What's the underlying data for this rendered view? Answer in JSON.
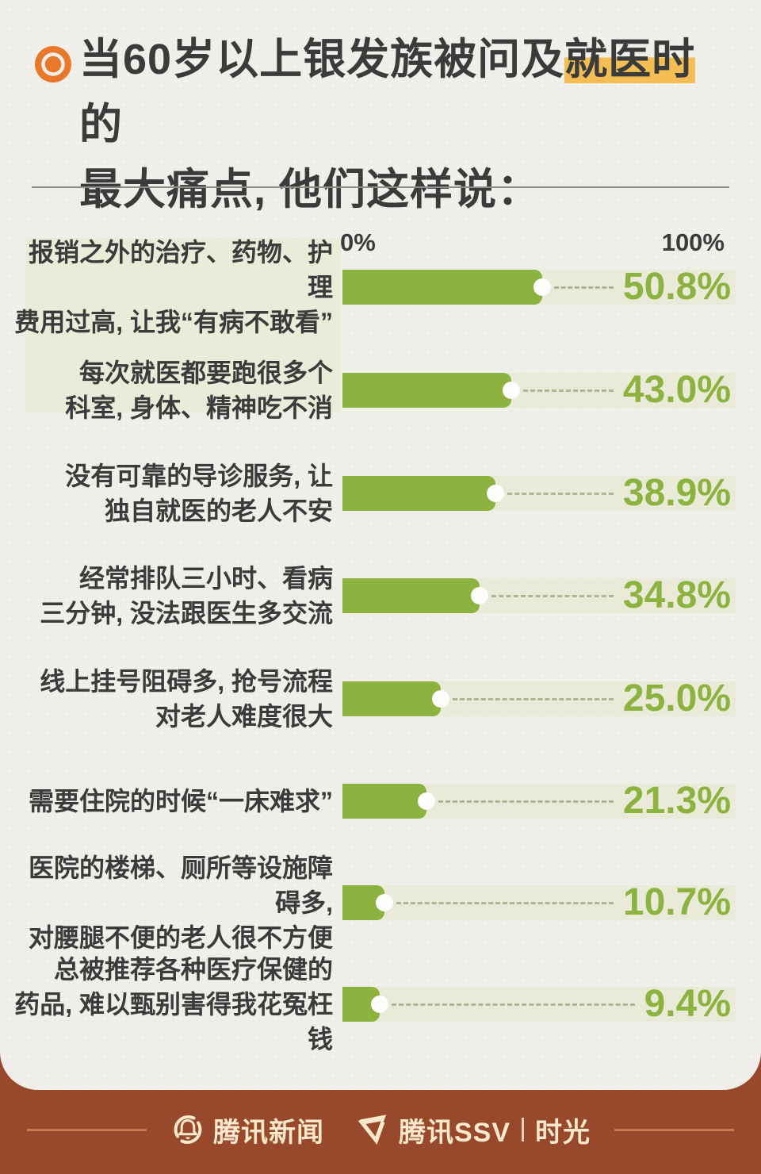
{
  "title": {
    "line1_pre": "当60岁以上银发族被问及",
    "line1_highlight": "就医时",
    "line1_post": "的",
    "line2": "最大痛点, 他们这样说："
  },
  "axis": {
    "min_label": "0%",
    "max_label": "100%"
  },
  "chart_data": {
    "type": "bar",
    "orientation": "horizontal",
    "title": "当60岁以上银发族被问及就医时的最大痛点, 他们这样说：",
    "xlim": [
      0,
      100
    ],
    "x_tick_labels": [
      "0%",
      "100%"
    ],
    "grid": false,
    "legend": "none",
    "categories": [
      "报销之外的治疗、药物、护理费用过高, 让我“有病不敢看”",
      "每次就医都要跑很多个科室, 身体、精神吃不消",
      "没有可靠的导诊服务, 让独自就医的老人不安",
      "经常排队三小时、看病三分钟, 没法跟医生多交流",
      "线上挂号阻碍多, 抢号流程对老人难度很大",
      "需要住院的时候“一床难求”",
      "医院的楼梯、厕所等设施障碍多, 对腰腿不便的老人很不方便",
      "总被推荐各种医疗保健的药品, 难以甄别害得我花冤枉钱"
    ],
    "label_lines": [
      [
        "报销之外的治疗、药物、护理",
        "费用过高, 让我“有病不敢看”"
      ],
      [
        "每次就医都要跑很多个",
        "科室, 身体、精神吃不消"
      ],
      [
        "没有可靠的导诊服务, 让",
        "独自就医的老人不安"
      ],
      [
        "经常排队三小时、看病",
        "三分钟, 没法跟医生多交流"
      ],
      [
        "线上挂号阻碍多, 抢号流程",
        "对老人难度很大"
      ],
      [
        "需要住院的时候“一床难求”"
      ],
      [
        "医院的楼梯、厕所等设施障碍多,",
        "对腰腿不便的老人很不方便"
      ],
      [
        "总被推荐各种医疗保健的",
        "药品, 难以甄别害得我花冤枉钱"
      ]
    ],
    "values": [
      50.8,
      43.0,
      38.9,
      34.8,
      25.0,
      21.3,
      10.7,
      9.4
    ],
    "value_labels": [
      "50.8%",
      "43.0%",
      "38.9%",
      "34.8%",
      "25.0%",
      "21.3%",
      "10.7%",
      "9.4%"
    ]
  },
  "footer": {
    "news_label": "腾讯新闻",
    "ssv_label": "腾讯SSV",
    "divider": "|",
    "time_label": "时光"
  },
  "colors": {
    "bar_green": "#8CB23F",
    "track": "#E9EBD8",
    "label_panel": "#E8ECD8",
    "title_highlight": "#F4BE55",
    "bullet_orange": "#E8782A",
    "paper": "#F1EFEA",
    "text_dark": "#3A3B3B",
    "footer_brown": "#98492B",
    "footer_cream": "#F8E9CC"
  }
}
